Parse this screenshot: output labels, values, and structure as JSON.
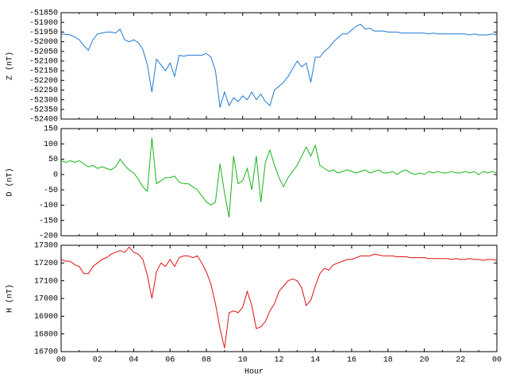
{
  "chart_data": {
    "type": "line",
    "xlabel": "Hour",
    "xlim": [
      0,
      24
    ],
    "xticks": [
      {
        "value": 0,
        "label": "00"
      },
      {
        "value": 2,
        "label": "02"
      },
      {
        "value": 4,
        "label": "04"
      },
      {
        "value": 6,
        "label": "06"
      },
      {
        "value": 8,
        "label": "08"
      },
      10,
      12,
      14,
      16,
      18,
      20,
      22,
      {
        "value": 24,
        "label": "00"
      }
    ],
    "xminorticks": [
      1,
      3,
      5,
      7,
      9,
      11,
      13,
      15,
      17,
      19,
      21,
      23
    ],
    "x": [
      0,
      0.25,
      0.5,
      0.75,
      1,
      1.25,
      1.5,
      1.75,
      2,
      2.25,
      2.5,
      2.75,
      3,
      3.25,
      3.5,
      3.75,
      4,
      4.25,
      4.5,
      4.75,
      5,
      5.25,
      5.5,
      5.75,
      6,
      6.25,
      6.5,
      6.75,
      7,
      7.25,
      7.5,
      7.75,
      8,
      8.25,
      8.5,
      8.75,
      9,
      9.25,
      9.5,
      9.75,
      10,
      10.25,
      10.5,
      10.75,
      11,
      11.25,
      11.5,
      11.75,
      12,
      12.25,
      12.5,
      12.75,
      13,
      13.25,
      13.5,
      13.75,
      14,
      14.25,
      14.5,
      14.75,
      15,
      15.25,
      15.5,
      15.75,
      16,
      16.25,
      16.5,
      16.75,
      17,
      17.25,
      17.5,
      17.75,
      18,
      18.25,
      18.5,
      18.75,
      19,
      19.25,
      19.5,
      19.75,
      20,
      20.25,
      20.5,
      20.75,
      21,
      21.25,
      21.5,
      21.75,
      22,
      22.25,
      22.5,
      22.75,
      23,
      23.25,
      23.5,
      23.75,
      24
    ],
    "panels": [
      {
        "ylabel": "Z (nT)",
        "color": "#1e78d2",
        "ylim": [
          -52400,
          -51850
        ],
        "yticks": [
          -51850,
          -51900,
          -51950,
          -52000,
          -52050,
          -52100,
          -52150,
          -52200,
          -52250,
          -52300,
          -52350,
          -52400
        ],
        "values": [
          -51960,
          -51962,
          -51965,
          -51975,
          -51990,
          -52020,
          -52045,
          -51990,
          -51960,
          -51955,
          -51950,
          -51950,
          -51955,
          -51935,
          -51990,
          -52000,
          -51990,
          -52005,
          -52040,
          -52120,
          -52260,
          -52090,
          -52120,
          -52150,
          -52110,
          -52180,
          -52070,
          -52075,
          -52070,
          -52070,
          -52070,
          -52070,
          -52060,
          -52080,
          -52150,
          -52340,
          -52260,
          -52330,
          -52290,
          -52310,
          -52280,
          -52300,
          -52260,
          -52300,
          -52270,
          -52310,
          -52330,
          -52250,
          -52230,
          -52210,
          -52180,
          -52140,
          -52100,
          -52130,
          -52110,
          -52210,
          -52080,
          -52080,
          -52050,
          -52030,
          -52000,
          -51980,
          -51960,
          -51960,
          -51940,
          -51920,
          -51910,
          -51935,
          -51930,
          -51945,
          -51945,
          -51945,
          -51950,
          -51950,
          -51950,
          -51955,
          -51955,
          -51955,
          -51955,
          -51955,
          -51955,
          -51960,
          -51955,
          -51960,
          -51960,
          -51960,
          -51960,
          -51960,
          -51960,
          -51960,
          -51965,
          -51960,
          -51965,
          -51965,
          -51965,
          -51960,
          -51965
        ]
      },
      {
        "ylabel": "D (nT)",
        "color": "#17b317",
        "ylim": [
          -200,
          150
        ],
        "yticks": [
          150,
          100,
          50,
          0,
          -50,
          -100,
          -150,
          -200
        ],
        "values": [
          45,
          40,
          45,
          40,
          45,
          35,
          25,
          30,
          20,
          25,
          20,
          15,
          25,
          50,
          30,
          15,
          5,
          -15,
          -40,
          -55,
          120,
          -30,
          -20,
          -10,
          -10,
          -5,
          -25,
          -30,
          -30,
          -40,
          -50,
          -70,
          -90,
          -100,
          -90,
          35,
          -60,
          -140,
          60,
          -30,
          -20,
          20,
          -50,
          60,
          -90,
          40,
          80,
          30,
          -10,
          -40,
          -10,
          10,
          30,
          60,
          90,
          60,
          95,
          30,
          20,
          10,
          15,
          5,
          10,
          15,
          10,
          5,
          10,
          15,
          5,
          10,
          15,
          5,
          5,
          10,
          0,
          10,
          15,
          5,
          0,
          5,
          0,
          10,
          5,
          10,
          5,
          5,
          10,
          5,
          5,
          10,
          5,
          10,
          0,
          10,
          5,
          10,
          5
        ]
      },
      {
        "ylabel": "H (nT)",
        "color": "#e01010",
        "ylim": [
          16700,
          17300
        ],
        "yticks": [
          17300,
          17200,
          17100,
          17000,
          16900,
          16800,
          16700
        ],
        "values": [
          17220,
          17210,
          17210,
          17190,
          17180,
          17140,
          17140,
          17180,
          17200,
          17220,
          17230,
          17250,
          17260,
          17270,
          17260,
          17290,
          17260,
          17250,
          17220,
          17130,
          17000,
          17150,
          17200,
          17180,
          17220,
          17180,
          17230,
          17240,
          17240,
          17230,
          17240,
          17200,
          17150,
          17080,
          16970,
          16830,
          16720,
          16920,
          16930,
          16920,
          16950,
          17040,
          16960,
          16830,
          16840,
          16870,
          16930,
          16970,
          17040,
          17070,
          17100,
          17110,
          17100,
          17060,
          16960,
          16990,
          17070,
          17140,
          17170,
          17160,
          17190,
          17200,
          17210,
          17220,
          17220,
          17230,
          17240,
          17240,
          17240,
          17250,
          17245,
          17240,
          17240,
          17240,
          17235,
          17235,
          17235,
          17230,
          17230,
          17230,
          17230,
          17225,
          17225,
          17225,
          17225,
          17225,
          17220,
          17225,
          17220,
          17220,
          17225,
          17220,
          17220,
          17215,
          17220,
          17220,
          17215
        ]
      }
    ]
  }
}
